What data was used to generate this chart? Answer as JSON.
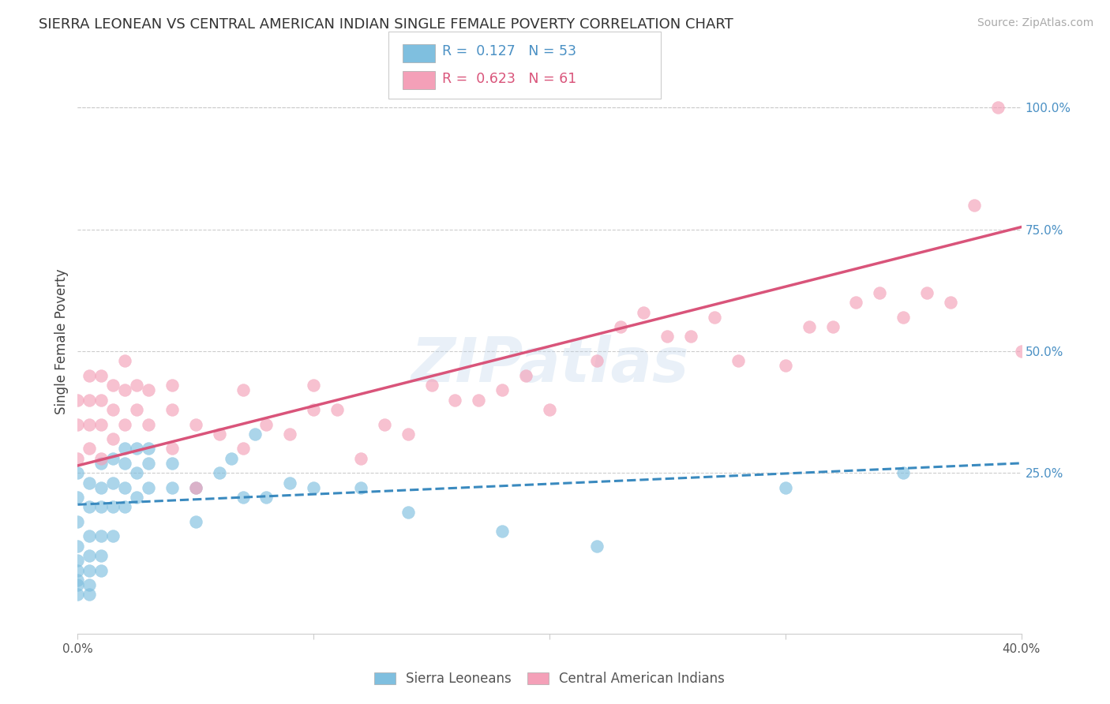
{
  "title": "SIERRA LEONEAN VS CENTRAL AMERICAN INDIAN SINGLE FEMALE POVERTY CORRELATION CHART",
  "source": "Source: ZipAtlas.com",
  "ylabel": "Single Female Poverty",
  "xlim": [
    0.0,
    0.4
  ],
  "ylim": [
    -0.08,
    1.12
  ],
  "xticks": [
    0.0,
    0.1,
    0.2,
    0.3,
    0.4
  ],
  "xticklabels": [
    "0.0%",
    "",
    "",
    "",
    "40.0%"
  ],
  "yticks_right": [
    0.25,
    0.5,
    0.75,
    1.0
  ],
  "ytickslabels_right": [
    "25.0%",
    "50.0%",
    "75.0%",
    "100.0%"
  ],
  "legend_label1": "Sierra Leoneans",
  "legend_label2": "Central American Indians",
  "blue_color": "#7fbfdf",
  "pink_color": "#f4a0b8",
  "blue_line_color": "#3a8abf",
  "pink_line_color": "#d9547a",
  "blue_R": 0.127,
  "blue_N": 53,
  "pink_R": 0.623,
  "pink_N": 61,
  "blue_points_x": [
    0.0,
    0.0,
    0.0,
    0.0,
    0.0,
    0.0,
    0.0,
    0.0,
    0.0,
    0.005,
    0.005,
    0.005,
    0.005,
    0.005,
    0.005,
    0.005,
    0.01,
    0.01,
    0.01,
    0.01,
    0.01,
    0.01,
    0.015,
    0.015,
    0.015,
    0.015,
    0.02,
    0.02,
    0.02,
    0.02,
    0.025,
    0.025,
    0.025,
    0.03,
    0.03,
    0.03,
    0.04,
    0.04,
    0.05,
    0.05,
    0.06,
    0.065,
    0.07,
    0.075,
    0.08,
    0.09,
    0.1,
    0.12,
    0.14,
    0.18,
    0.22,
    0.3,
    0.35
  ],
  "blue_points_y": [
    0.0,
    0.02,
    0.03,
    0.05,
    0.07,
    0.1,
    0.15,
    0.2,
    0.25,
    0.0,
    0.02,
    0.05,
    0.08,
    0.12,
    0.18,
    0.23,
    0.05,
    0.08,
    0.12,
    0.18,
    0.22,
    0.27,
    0.12,
    0.18,
    0.23,
    0.28,
    0.18,
    0.22,
    0.27,
    0.3,
    0.2,
    0.25,
    0.3,
    0.22,
    0.27,
    0.3,
    0.22,
    0.27,
    0.15,
    0.22,
    0.25,
    0.28,
    0.2,
    0.33,
    0.2,
    0.23,
    0.22,
    0.22,
    0.17,
    0.13,
    0.1,
    0.22,
    0.25
  ],
  "pink_points_x": [
    0.0,
    0.0,
    0.0,
    0.005,
    0.005,
    0.005,
    0.005,
    0.01,
    0.01,
    0.01,
    0.01,
    0.015,
    0.015,
    0.015,
    0.02,
    0.02,
    0.02,
    0.025,
    0.025,
    0.03,
    0.03,
    0.04,
    0.04,
    0.04,
    0.05,
    0.05,
    0.06,
    0.07,
    0.07,
    0.08,
    0.09,
    0.1,
    0.1,
    0.11,
    0.12,
    0.13,
    0.14,
    0.15,
    0.16,
    0.17,
    0.18,
    0.19,
    0.2,
    0.22,
    0.23,
    0.24,
    0.25,
    0.26,
    0.27,
    0.28,
    0.3,
    0.31,
    0.32,
    0.33,
    0.34,
    0.35,
    0.36,
    0.37,
    0.38,
    0.39,
    0.4
  ],
  "pink_points_y": [
    0.28,
    0.35,
    0.4,
    0.3,
    0.35,
    0.4,
    0.45,
    0.28,
    0.35,
    0.4,
    0.45,
    0.32,
    0.38,
    0.43,
    0.35,
    0.42,
    0.48,
    0.38,
    0.43,
    0.35,
    0.42,
    0.3,
    0.38,
    0.43,
    0.22,
    0.35,
    0.33,
    0.3,
    0.42,
    0.35,
    0.33,
    0.38,
    0.43,
    0.38,
    0.28,
    0.35,
    0.33,
    0.43,
    0.4,
    0.4,
    0.42,
    0.45,
    0.38,
    0.48,
    0.55,
    0.58,
    0.53,
    0.53,
    0.57,
    0.48,
    0.47,
    0.55,
    0.55,
    0.6,
    0.62,
    0.57,
    0.62,
    0.6,
    0.8,
    1.0,
    0.5
  ]
}
